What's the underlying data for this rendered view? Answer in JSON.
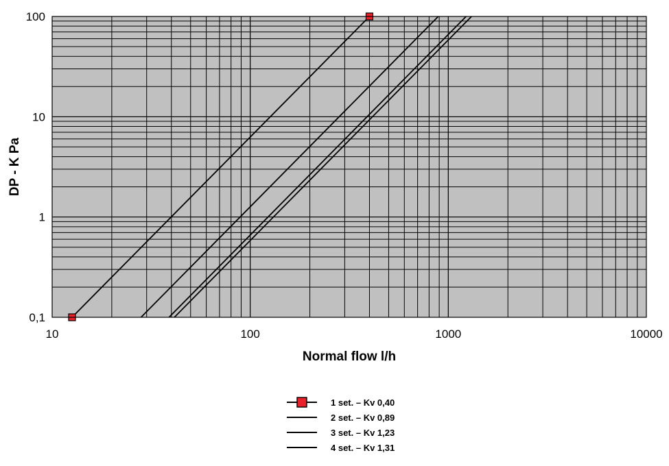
{
  "chart_data": {
    "type": "line",
    "xlabel": "Normal flow l/h",
    "ylabel": "DP - K Pa",
    "x_scale": "log",
    "y_scale": "log",
    "xlim": [
      10,
      10000
    ],
    "ylim": [
      0.1,
      100
    ],
    "x_ticks": [
      "10",
      "100",
      "1000",
      "10000"
    ],
    "y_ticks": [
      "0,1",
      "1",
      "10",
      "100"
    ],
    "grid": true,
    "legend_position": "bottom-center",
    "plot_background": "#c0c0c0",
    "series": [
      {
        "name": "1 set. – Kv 0,40",
        "x": [
          12.6,
          400
        ],
        "y": [
          0.1,
          100
        ],
        "color": "#000000",
        "marker": "square",
        "marker_color": "#e8212b"
      },
      {
        "name": "2 set. – Kv 0,89",
        "x": [
          28.1,
          890
        ],
        "y": [
          0.1,
          100
        ],
        "color": "#000000"
      },
      {
        "name": "3 set. – Kv 1,23",
        "x": [
          38.9,
          1230
        ],
        "y": [
          0.1,
          100
        ],
        "color": "#000000"
      },
      {
        "name": "4 set. – Kv 1,31",
        "x": [
          41.4,
          1310
        ],
        "y": [
          0.1,
          100
        ],
        "color": "#000000"
      }
    ]
  }
}
